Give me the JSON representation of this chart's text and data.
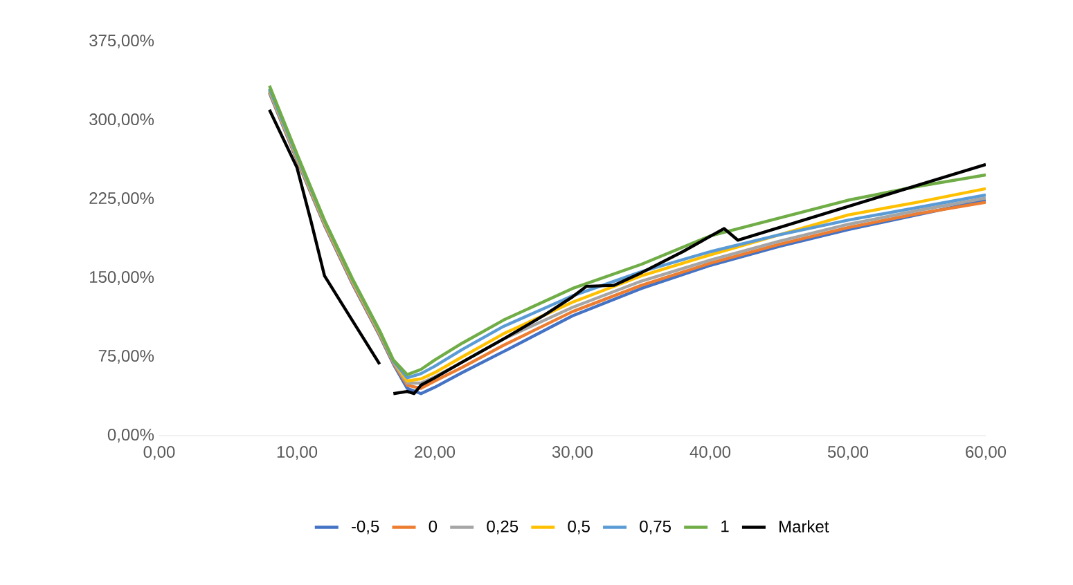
{
  "chart_data": {
    "type": "line",
    "xlim": [
      0,
      60
    ],
    "ylim": [
      0,
      375
    ],
    "xticks": [
      {
        "value": 0,
        "label": "0,00"
      },
      {
        "value": 10,
        "label": "10,00"
      },
      {
        "value": 20,
        "label": "20,00"
      },
      {
        "value": 30,
        "label": "30,00"
      },
      {
        "value": 40,
        "label": "40,00"
      },
      {
        "value": 50,
        "label": "50,00"
      },
      {
        "value": 60,
        "label": "60,00"
      }
    ],
    "yticks": [
      {
        "value": 0,
        "label": "0,00%"
      },
      {
        "value": 75,
        "label": "75,00%"
      },
      {
        "value": 150,
        "label": "150,00%"
      },
      {
        "value": 225,
        "label": "225,00%"
      },
      {
        "value": 300,
        "label": "300,00%"
      },
      {
        "value": 375,
        "label": "375,00%"
      }
    ],
    "legend": "bottom",
    "series": [
      {
        "name": "-0,5",
        "color": "#4472c4",
        "x": [
          8,
          10,
          12,
          14,
          16,
          17,
          18,
          19,
          20,
          22,
          25,
          30,
          35,
          40,
          45,
          50,
          55,
          60
        ],
        "values": [
          326,
          262,
          200,
          145,
          95,
          68,
          45,
          40,
          46,
          60,
          80,
          114,
          140,
          162,
          180,
          196,
          210,
          224
        ]
      },
      {
        "name": "0",
        "color": "#ed7d31",
        "x": [
          8,
          10,
          12,
          14,
          16,
          17,
          18,
          19,
          20,
          22,
          25,
          30,
          35,
          40,
          45,
          50,
          55,
          60
        ],
        "values": [
          327,
          263,
          201,
          146,
          96,
          69,
          48,
          45,
          52,
          65,
          86,
          118,
          143,
          164,
          182,
          198,
          211,
          222
        ]
      },
      {
        "name": "0,25",
        "color": "#a5a5a5",
        "x": [
          8,
          10,
          12,
          14,
          16,
          17,
          18,
          19,
          20,
          22,
          25,
          30,
          35,
          40,
          45,
          50,
          55,
          60
        ],
        "values": [
          328,
          264,
          202,
          147,
          97,
          70,
          50,
          50,
          56,
          70,
          92,
          122,
          147,
          167,
          185,
          201,
          214,
          226
        ]
      },
      {
        "name": "0,5",
        "color": "#ffc000",
        "x": [
          8,
          10,
          12,
          14,
          16,
          17,
          18,
          19,
          20,
          22,
          25,
          30,
          35,
          40,
          45,
          50,
          55,
          60
        ],
        "values": [
          329,
          265,
          203,
          148,
          98,
          71,
          52,
          54,
          60,
          75,
          97,
          127,
          152,
          172,
          191,
          210,
          222,
          235
        ]
      },
      {
        "name": "0,75",
        "color": "#5b9bd5",
        "x": [
          8,
          10,
          12,
          14,
          16,
          17,
          18,
          19,
          20,
          22,
          25,
          30,
          35,
          40,
          45,
          50,
          55,
          60
        ],
        "values": [
          330,
          266,
          204,
          149,
          99,
          71,
          55,
          59,
          66,
          82,
          104,
          133,
          156,
          175,
          191,
          205,
          217,
          229
        ]
      },
      {
        "name": "1",
        "color": "#70ad47",
        "x": [
          8,
          10,
          12,
          14,
          16,
          17,
          18,
          19,
          20,
          22,
          25,
          30,
          35,
          40,
          45,
          50,
          55,
          60
        ],
        "values": [
          333,
          268,
          205,
          150,
          100,
          72,
          58,
          63,
          72,
          88,
          110,
          140,
          163,
          190,
          207,
          224,
          237,
          248
        ]
      },
      {
        "name": "Market",
        "color": "#000000",
        "x": [
          8,
          10,
          11,
          12,
          14,
          16,
          16.5,
          17,
          18,
          18.5,
          19,
          20,
          22,
          25,
          28,
          30,
          31,
          33,
          35,
          38,
          41,
          42,
          45,
          50,
          55,
          60
        ],
        "values": [
          310,
          255,
          205,
          152,
          110,
          68,
          null,
          40,
          42,
          40,
          48,
          55,
          70,
          92,
          115,
          132,
          142,
          143,
          155,
          175,
          197,
          186,
          198,
          218,
          238,
          258
        ]
      }
    ]
  }
}
